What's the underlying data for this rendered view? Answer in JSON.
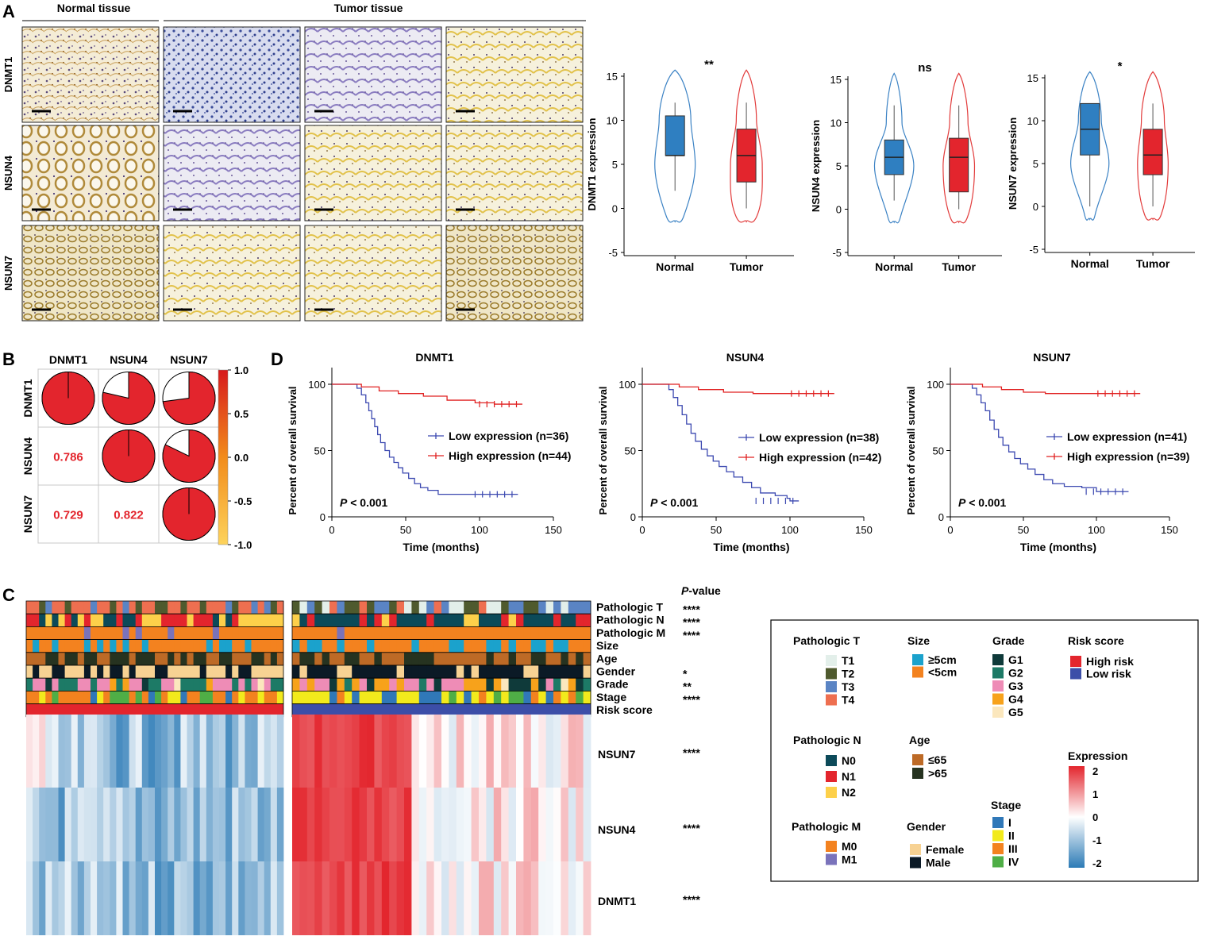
{
  "panel_letters": {
    "a": "A",
    "b": "B",
    "c": "C",
    "d": "D"
  },
  "ihc": {
    "group_normal": "Normal tissue",
    "group_tumor": "Tumor tissue",
    "rows": [
      "DNMT1",
      "NSUN4",
      "NSUN7"
    ]
  },
  "chart_data": [
    {
      "type": "violin",
      "panel": "A",
      "ylabel": "DNMT1 expression",
      "significance": "**",
      "categories": [
        "Normal",
        "Tumor"
      ],
      "ylim": [
        -5,
        15
      ],
      "yticks": [
        -5,
        0,
        5,
        10,
        15
      ],
      "box": [
        {
          "group": "Normal",
          "min": 2,
          "q1": 6,
          "median": 6,
          "q3": 10.5,
          "max": 12
        },
        {
          "group": "Tumor",
          "min": 0,
          "q1": 3,
          "median": 6,
          "q3": 9,
          "max": 12
        }
      ]
    },
    {
      "type": "violin",
      "panel": "A",
      "ylabel": "NSUN4 expression",
      "significance": "ns",
      "categories": [
        "Normal",
        "Tumor"
      ],
      "ylim": [
        -5,
        15
      ],
      "yticks": [
        -5,
        0,
        5,
        10,
        15
      ],
      "box": [
        {
          "group": "Normal",
          "min": 1,
          "q1": 4,
          "median": 6,
          "q3": 8,
          "max": 12
        },
        {
          "group": "Tumor",
          "min": 0,
          "q1": 2,
          "median": 6,
          "q3": 8.2,
          "max": 12
        }
      ]
    },
    {
      "type": "violin",
      "panel": "A",
      "ylabel": "NSUN7 expression",
      "significance": "*",
      "categories": [
        "Normal",
        "Tumor"
      ],
      "ylim": [
        -5,
        15
      ],
      "yticks": [
        -5,
        0,
        5,
        10,
        15
      ],
      "box": [
        {
          "group": "Normal",
          "min": 0,
          "q1": 6,
          "median": 9,
          "q3": 12,
          "max": 12
        },
        {
          "group": "Tumor",
          "min": 0,
          "q1": 3.7,
          "median": 6,
          "q3": 9,
          "max": 12
        }
      ]
    },
    {
      "type": "correlation_matrix",
      "panel": "B",
      "labels": [
        "DNMT1",
        "NSUN4",
        "NSUN7"
      ],
      "values": [
        [
          1.0,
          0.786,
          0.729
        ],
        [
          0.786,
          1.0,
          0.822
        ],
        [
          0.729,
          0.822,
          1.0
        ]
      ],
      "lower_labels": {
        "NSUN4_DNMT1": "0.786",
        "NSUN7_DNMT1": "0.729",
        "NSUN7_NSUN4": "0.822"
      },
      "colorbar_ticks": [
        "1.0",
        "0.5",
        "0.0",
        "-0.5",
        "-1.0"
      ],
      "colorbar_range": [
        -1,
        1
      ]
    },
    {
      "type": "line",
      "panel": "D",
      "title": "DNMT1",
      "xlabel": "Time (months)",
      "ylabel": "Percent of overall survival",
      "xlim": [
        0,
        150
      ],
      "ylim": [
        0,
        100
      ],
      "xticks": [
        0,
        50,
        100,
        150
      ],
      "yticks": [
        0,
        50,
        100
      ],
      "pvalue_label": "P",
      "pvalue_text": " < 0.001",
      "series": [
        {
          "name": "Low expression (n=36)",
          "color": "#3b48b0",
          "points": [
            [
              0,
              100
            ],
            [
              14,
              100
            ],
            [
              17,
              97
            ],
            [
              20,
              92
            ],
            [
              23,
              86
            ],
            [
              25,
              80
            ],
            [
              27,
              74
            ],
            [
              29,
              68
            ],
            [
              31,
              62
            ],
            [
              33,
              56
            ],
            [
              36,
              50
            ],
            [
              39,
              45
            ],
            [
              42,
              41
            ],
            [
              45,
              37
            ],
            [
              48,
              33
            ],
            [
              52,
              29
            ],
            [
              56,
              25
            ],
            [
              60,
              22
            ],
            [
              65,
              20
            ],
            [
              72,
              17
            ],
            [
              126,
              17
            ]
          ]
        },
        {
          "name": "High expression (n=44)",
          "color": "#e02020",
          "points": [
            [
              0,
              100
            ],
            [
              14,
              100
            ],
            [
              20,
              98
            ],
            [
              32,
              95
            ],
            [
              45,
              93
            ],
            [
              62,
              91
            ],
            [
              78,
              88
            ],
            [
              97,
              86
            ],
            [
              110,
              85
            ],
            [
              129,
              85
            ]
          ]
        }
      ]
    },
    {
      "type": "line",
      "panel": "D",
      "title": "NSUN4",
      "xlabel": "Time (months)",
      "ylabel": "Percent of overall survival",
      "xlim": [
        0,
        150
      ],
      "ylim": [
        0,
        100
      ],
      "xticks": [
        0,
        50,
        100,
        150
      ],
      "yticks": [
        0,
        50,
        100
      ],
      "pvalue_label": "P",
      "pvalue_text": " < 0.001",
      "series": [
        {
          "name": "Low expression (n=38)",
          "color": "#3b48b0",
          "points": [
            [
              0,
              100
            ],
            [
              15,
              100
            ],
            [
              18,
              96
            ],
            [
              21,
              90
            ],
            [
              24,
              84
            ],
            [
              27,
              77
            ],
            [
              30,
              70
            ],
            [
              33,
              63
            ],
            [
              36,
              57
            ],
            [
              40,
              51
            ],
            [
              44,
              46
            ],
            [
              48,
              42
            ],
            [
              52,
              38
            ],
            [
              57,
              34
            ],
            [
              62,
              30
            ],
            [
              68,
              26
            ],
            [
              74,
              22
            ],
            [
              80,
              18
            ],
            [
              90,
              16
            ],
            [
              98,
              14
            ],
            [
              100,
              12
            ],
            [
              106,
              12
            ]
          ]
        },
        {
          "name": "High expression (n=42)",
          "color": "#e02020",
          "points": [
            [
              0,
              100
            ],
            [
              15,
              100
            ],
            [
              25,
              98
            ],
            [
              38,
              96
            ],
            [
              55,
              94
            ],
            [
              75,
              93
            ],
            [
              130,
              93
            ]
          ]
        }
      ]
    },
    {
      "type": "line",
      "panel": "D",
      "title": "NSUN7",
      "xlabel": "Time (months)",
      "ylabel": "Percent of overall survival",
      "xlim": [
        0,
        150
      ],
      "ylim": [
        0,
        100
      ],
      "xticks": [
        0,
        50,
        100,
        150
      ],
      "yticks": [
        0,
        50,
        100
      ],
      "pvalue_label": "P",
      "pvalue_text": " < 0.001",
      "series": [
        {
          "name": "Low expression (n=41)",
          "color": "#3b48b0",
          "points": [
            [
              0,
              100
            ],
            [
              12,
              100
            ],
            [
              15,
              97
            ],
            [
              18,
              92
            ],
            [
              21,
              86
            ],
            [
              24,
              80
            ],
            [
              27,
              73
            ],
            [
              30,
              66
            ],
            [
              33,
              60
            ],
            [
              36,
              54
            ],
            [
              40,
              49
            ],
            [
              44,
              44
            ],
            [
              48,
              40
            ],
            [
              53,
              36
            ],
            [
              58,
              32
            ],
            [
              64,
              28
            ],
            [
              70,
              25
            ],
            [
              78,
              23
            ],
            [
              90,
              22
            ],
            [
              100,
              19
            ],
            [
              122,
              19
            ]
          ]
        },
        {
          "name": "High expression (n=39)",
          "color": "#e02020",
          "points": [
            [
              0,
              100
            ],
            [
              14,
              100
            ],
            [
              22,
              98
            ],
            [
              35,
              96
            ],
            [
              50,
              94
            ],
            [
              65,
              93
            ],
            [
              130,
              93
            ]
          ]
        }
      ]
    },
    {
      "type": "heatmap",
      "panel": "C",
      "pvalue_header_p": "P",
      "pvalue_header_rest": "-value",
      "annotation_rows": [
        {
          "name": "Pathologic T",
          "pvalue": "****"
        },
        {
          "name": "Pathologic N",
          "pvalue": "****"
        },
        {
          "name": "Pathologic M",
          "pvalue": "****"
        },
        {
          "name": "Size",
          "pvalue": ""
        },
        {
          "name": "Age",
          "pvalue": ""
        },
        {
          "name": "Gender",
          "pvalue": "*"
        },
        {
          "name": "Grade",
          "pvalue": "**"
        },
        {
          "name": "Stage",
          "pvalue": "****"
        },
        {
          "name": "Risk score",
          "pvalue": ""
        }
      ],
      "gene_rows": [
        {
          "name": "NSUN7",
          "pvalue": "****"
        },
        {
          "name": "NSUN4",
          "pvalue": "****"
        },
        {
          "name": "DNMT1",
          "pvalue": "****"
        }
      ],
      "groups": [
        "High risk",
        "Low risk"
      ],
      "value_range": [
        -2,
        2
      ]
    }
  ],
  "legend": {
    "pathologic_t": {
      "title": "Pathologic T",
      "items": [
        {
          "label": "T1",
          "color": "#e3efea"
        },
        {
          "label": "T2",
          "color": "#4f5a2e"
        },
        {
          "label": "T3",
          "color": "#5a84c4"
        },
        {
          "label": "T4",
          "color": "#ee6f50"
        }
      ]
    },
    "size": {
      "title": "Size",
      "items": [
        {
          "label": "≥5cm",
          "color": "#1ba2cc"
        },
        {
          "label": "<5cm",
          "color": "#f3821f"
        }
      ]
    },
    "grade": {
      "title": "Grade",
      "items": [
        {
          "label": "G1",
          "color": "#0f3a3a"
        },
        {
          "label": "G2",
          "color": "#1d7a66"
        },
        {
          "label": "G3",
          "color": "#ee8cb6"
        },
        {
          "label": "G4",
          "color": "#f7a21b"
        },
        {
          "label": "G5",
          "color": "#fbe7bd"
        }
      ]
    },
    "risk_score": {
      "title": "Risk score",
      "items": [
        {
          "label": "High risk",
          "color": "#e3252d"
        },
        {
          "label": "Low  risk",
          "color": "#3c4ea8"
        }
      ]
    },
    "pathologic_n": {
      "title": "Pathologic N",
      "items": [
        {
          "label": "N0",
          "color": "#0c4a59"
        },
        {
          "label": "N1",
          "color": "#e3252d"
        },
        {
          "label": "N2",
          "color": "#fdd04a"
        }
      ]
    },
    "age": {
      "title": "Age",
      "items": [
        {
          "label": "≤65",
          "color": "#bd6a26"
        },
        {
          "label": ">65",
          "color": "#263320"
        }
      ]
    },
    "pathologic_m": {
      "title": "Pathologic M",
      "items": [
        {
          "label": "M0",
          "color": "#f3821f"
        },
        {
          "label": "M1",
          "color": "#7a73bb"
        }
      ]
    },
    "gender": {
      "title": "Gender",
      "items": [
        {
          "label": "Female",
          "color": "#f7d293"
        },
        {
          "label": "Male",
          "color": "#0b1a26"
        }
      ]
    },
    "stage": {
      "title": "Stage",
      "items": [
        {
          "label": "I",
          "color": "#3078b8"
        },
        {
          "label": "II",
          "color": "#f2ea1c"
        },
        {
          "label": "III",
          "color": "#f3821f"
        },
        {
          "label": "IV",
          "color": "#4fae46"
        }
      ]
    },
    "expression": {
      "title": "Expression",
      "ticks": [
        "2",
        "1",
        "0",
        "-1",
        "-2"
      ]
    }
  }
}
